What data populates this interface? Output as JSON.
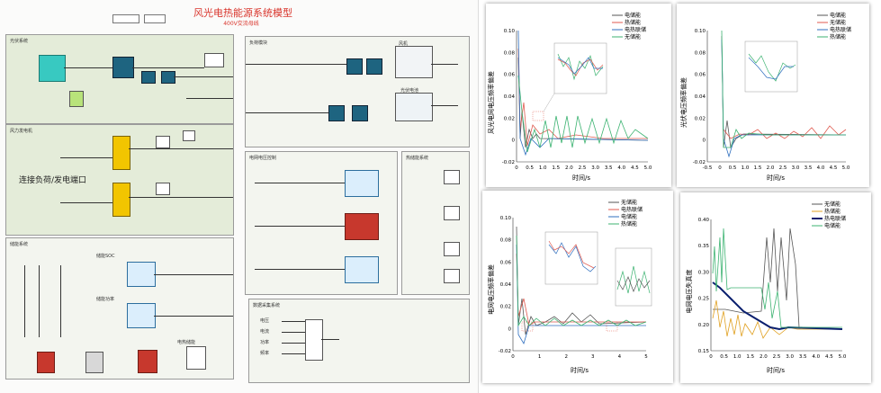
{
  "model": {
    "title": "风光电热能源系统模型",
    "subtitle": "400V交流母线",
    "panels": [
      {
        "label": "光伏系统"
      },
      {
        "label": "风力发电机"
      },
      {
        "label": "储能系统"
      },
      {
        "label": "负荷模块"
      },
      {
        "label": "电网电压控制"
      },
      {
        "label": "热储能系统"
      },
      {
        "label": "数据采集系统"
      }
    ],
    "annotations": {
      "side_label": "连接负荷/发电端口",
      "batt1": "储能SOC",
      "batt2": "储能功率",
      "pv_label": "光伏电池",
      "wind_label": "风机",
      "heat_label": "电热储能",
      "meas_items": [
        "电压",
        "电流",
        "功率",
        "频率"
      ]
    }
  },
  "charts": [
    {
      "id": "chart1",
      "ylabel": "风光电网电压频率偏差",
      "xlabel": "时间/s",
      "xticks": [
        "0",
        "0.5",
        "1.0",
        "1.5",
        "2.0",
        "2.5",
        "3.0",
        "3.5",
        "4.0",
        "4.5",
        "5.0"
      ],
      "yticks": [
        "0.10",
        "0.08",
        "0.06",
        "0.04",
        "0.02",
        "0",
        "-0.02"
      ],
      "legend": [
        "电储能",
        "热储能",
        "电热联储",
        "无储能"
      ],
      "colors": {
        "c1": "#555555",
        "c2": "#e05a4f",
        "c3": "#2f6fbf",
        "c4": "#3cb371"
      }
    },
    {
      "id": "chart2",
      "ylabel": "光伏电压频率偏差",
      "xlabel": "时间/s",
      "xticks": [
        "-0.5",
        "0",
        "0.5",
        "1.0",
        "1.5",
        "2.0",
        "2.5",
        "3.0",
        "3.5",
        "4.0",
        "4.5",
        "5.0"
      ],
      "yticks": [
        "0.10",
        "0.08",
        "0.06",
        "0.04",
        "0.02",
        "0",
        "-0.02"
      ],
      "legend": [
        "电储能",
        "无储能",
        "电热联储",
        "热储能"
      ],
      "colors": {
        "c1": "#555555",
        "c2": "#e05a4f",
        "c3": "#2f6fbf",
        "c4": "#3cb371"
      }
    },
    {
      "id": "chart3",
      "ylabel": "电网电压频率偏差",
      "xlabel": "时间/s",
      "xticks": [
        "0",
        "1",
        "2",
        "3",
        "4",
        "5"
      ],
      "yticks": [
        "0.10",
        "0.08",
        "0.06",
        "0.04",
        "0.02",
        "0",
        "-0.02"
      ],
      "legend": [
        "无储能",
        "电热联储",
        "电储能",
        "热储能"
      ],
      "colors": {
        "c1": "#555555",
        "c2": "#e05a4f",
        "c3": "#2f6fbf",
        "c4": "#3cb371"
      }
    },
    {
      "id": "chart4",
      "ylabel": "电网电压失真度",
      "xlabel": "时间/s",
      "xticks": [
        "0",
        "0.5",
        "1.0",
        "1.5",
        "2.0",
        "2.5",
        "3.0",
        "3.5",
        "4.0",
        "4.5",
        "5.0"
      ],
      "yticks": [
        "0.40",
        "0.35",
        "0.30",
        "0.25",
        "0.20",
        "0.15"
      ],
      "legend": [
        "无储能",
        "热储能",
        "热电联储",
        "电储能"
      ],
      "colors": {
        "c1": "#555555",
        "c2": "#e0a020",
        "c3": "#0a1f6e",
        "c4": "#3cb371"
      }
    }
  ]
}
